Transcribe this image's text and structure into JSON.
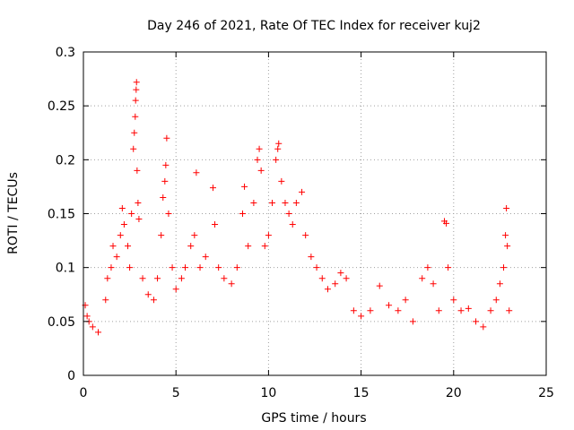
{
  "chart_data": {
    "type": "scatter",
    "title": "Day 246 of 2021, Rate Of TEC Index for receiver kuj2",
    "xlabel": "GPS time / hours",
    "ylabel": "ROTI / TECUs",
    "xlim": [
      0,
      25
    ],
    "ylim": [
      0,
      0.3
    ],
    "x_ticks": [
      "0",
      "5",
      "10",
      "15",
      "20",
      "25"
    ],
    "y_ticks": [
      "0",
      "0.05",
      "0.1",
      "0.15",
      "0.2",
      "0.25",
      "0.3"
    ],
    "grid": true,
    "marker": "+",
    "color": "#ff0000",
    "series": [
      {
        "points": [
          [
            0.1,
            0.065
          ],
          [
            0.2,
            0.055
          ],
          [
            0.3,
            0.05
          ],
          [
            0.5,
            0.045
          ],
          [
            0.8,
            0.04
          ],
          [
            1.2,
            0.07
          ],
          [
            1.3,
            0.09
          ],
          [
            1.5,
            0.1
          ],
          [
            1.6,
            0.12
          ],
          [
            1.8,
            0.11
          ],
          [
            2.0,
            0.13
          ],
          [
            2.1,
            0.155
          ],
          [
            2.2,
            0.14
          ],
          [
            2.4,
            0.12
          ],
          [
            2.5,
            0.1
          ],
          [
            2.6,
            0.15
          ],
          [
            2.7,
            0.21
          ],
          [
            2.75,
            0.225
          ],
          [
            2.8,
            0.24
          ],
          [
            2.82,
            0.255
          ],
          [
            2.85,
            0.265
          ],
          [
            2.87,
            0.272
          ],
          [
            2.9,
            0.19
          ],
          [
            2.95,
            0.16
          ],
          [
            3.0,
            0.145
          ],
          [
            3.2,
            0.09
          ],
          [
            3.5,
            0.075
          ],
          [
            3.8,
            0.07
          ],
          [
            4.0,
            0.09
          ],
          [
            4.2,
            0.13
          ],
          [
            4.3,
            0.165
          ],
          [
            4.4,
            0.18
          ],
          [
            4.45,
            0.195
          ],
          [
            4.5,
            0.22
          ],
          [
            4.6,
            0.15
          ],
          [
            4.8,
            0.1
          ],
          [
            5.0,
            0.08
          ],
          [
            5.3,
            0.09
          ],
          [
            5.5,
            0.1
          ],
          [
            5.8,
            0.12
          ],
          [
            6.0,
            0.13
          ],
          [
            6.1,
            0.188
          ],
          [
            6.3,
            0.1
          ],
          [
            6.6,
            0.11
          ],
          [
            7.0,
            0.174
          ],
          [
            7.1,
            0.14
          ],
          [
            7.3,
            0.1
          ],
          [
            7.6,
            0.09
          ],
          [
            8.0,
            0.085
          ],
          [
            8.3,
            0.1
          ],
          [
            8.6,
            0.15
          ],
          [
            8.7,
            0.175
          ],
          [
            8.9,
            0.12
          ],
          [
            9.2,
            0.16
          ],
          [
            9.4,
            0.2
          ],
          [
            9.5,
            0.21
          ],
          [
            9.6,
            0.19
          ],
          [
            9.8,
            0.12
          ],
          [
            10.0,
            0.13
          ],
          [
            10.2,
            0.16
          ],
          [
            10.4,
            0.2
          ],
          [
            10.5,
            0.21
          ],
          [
            10.55,
            0.215
          ],
          [
            10.7,
            0.18
          ],
          [
            10.9,
            0.16
          ],
          [
            11.1,
            0.15
          ],
          [
            11.3,
            0.14
          ],
          [
            11.5,
            0.16
          ],
          [
            11.8,
            0.17
          ],
          [
            12.0,
            0.13
          ],
          [
            12.3,
            0.11
          ],
          [
            12.6,
            0.1
          ],
          [
            12.9,
            0.09
          ],
          [
            13.2,
            0.08
          ],
          [
            13.6,
            0.085
          ],
          [
            13.9,
            0.095
          ],
          [
            14.2,
            0.09
          ],
          [
            14.6,
            0.06
          ],
          [
            15.0,
            0.055
          ],
          [
            15.5,
            0.06
          ],
          [
            16.0,
            0.083
          ],
          [
            16.5,
            0.065
          ],
          [
            17.0,
            0.06
          ],
          [
            17.4,
            0.07
          ],
          [
            17.8,
            0.05
          ],
          [
            18.3,
            0.09
          ],
          [
            18.6,
            0.1
          ],
          [
            18.9,
            0.085
          ],
          [
            19.2,
            0.06
          ],
          [
            19.5,
            0.143
          ],
          [
            19.6,
            0.141
          ],
          [
            19.7,
            0.1
          ],
          [
            20.0,
            0.07
          ],
          [
            20.4,
            0.06
          ],
          [
            20.8,
            0.062
          ],
          [
            21.2,
            0.05
          ],
          [
            21.6,
            0.045
          ],
          [
            22.0,
            0.06
          ],
          [
            22.3,
            0.07
          ],
          [
            22.5,
            0.085
          ],
          [
            22.7,
            0.1
          ],
          [
            22.8,
            0.13
          ],
          [
            22.85,
            0.155
          ],
          [
            22.9,
            0.12
          ],
          [
            23.0,
            0.06
          ]
        ]
      }
    ]
  }
}
